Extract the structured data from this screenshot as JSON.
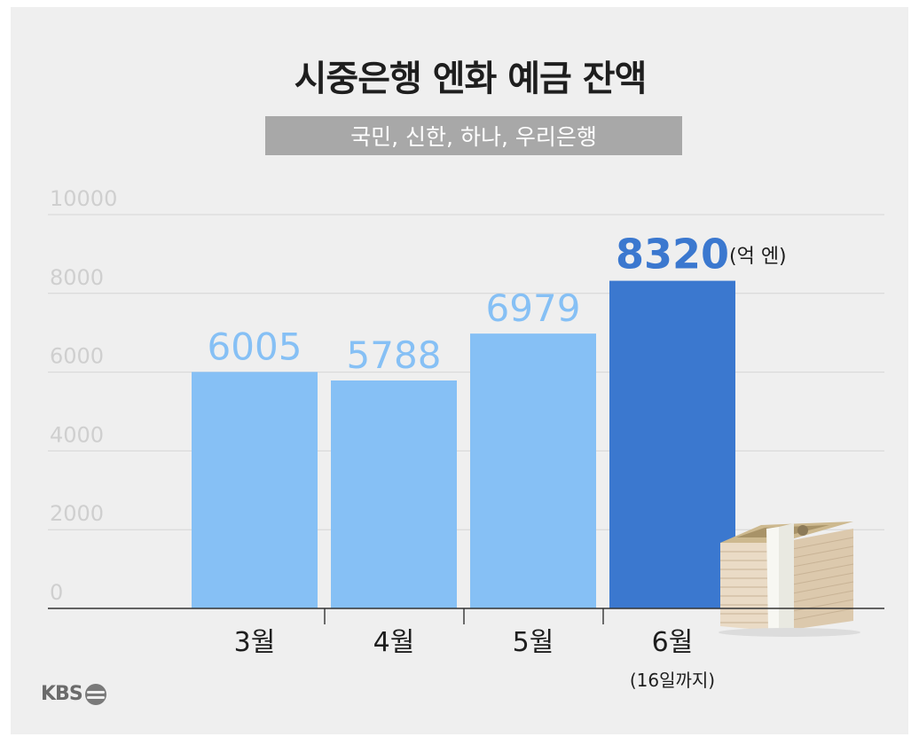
{
  "title": "시중은행 엔화 예금 잔액",
  "subtitle": "국민, 신한, 하나, 우리은행",
  "unit_label": "(억 엔)",
  "logo_text": "KBS",
  "chart_data": {
    "type": "bar",
    "categories": [
      "3월",
      "4월",
      "5월",
      "6월"
    ],
    "category_notes": [
      "",
      "",
      "",
      "(16일까지)"
    ],
    "values": [
      6005,
      5788,
      6979,
      8320
    ],
    "ylim": [
      0,
      10000
    ],
    "yticks": [
      0,
      2000,
      4000,
      6000,
      8000,
      10000
    ],
    "grid": true,
    "bar_colors": [
      "#86c0f5",
      "#86c0f5",
      "#86c0f5",
      "#3b78cf"
    ],
    "label_colors": [
      "#86c0f5",
      "#86c0f5",
      "#86c0f5",
      "#3b78cf"
    ],
    "highlight_index": 3
  },
  "colors": {
    "background": "#efefef",
    "grid": "#d6d6d6",
    "axis": "#333333",
    "tick_text": "#cfcfcf",
    "category_text": "#1e1e1e"
  },
  "icons": [
    "yen-bill-stack-icon",
    "kbs-logo-icon"
  ]
}
